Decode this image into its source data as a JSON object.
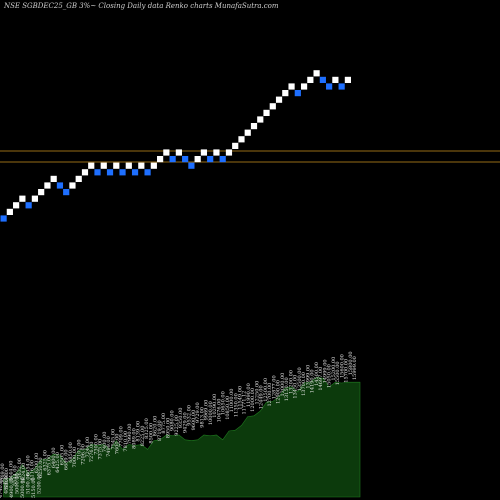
{
  "chart_data": {
    "type": "renko",
    "title": "NSE SGBDEC25_GB 3%~  Closing Daily data Renko  charts MunafaSutra.com",
    "colors": {
      "background": "#000000",
      "up_brick": "#ffffff",
      "down_brick": "#1e6fff",
      "reference_line": "#c8901e",
      "volume_fill": "#0c3a0c",
      "volume_line": "#1f7a1f"
    },
    "bricks": [
      {
        "dir": "down",
        "level": 0
      },
      {
        "dir": "up",
        "level": 1
      },
      {
        "dir": "up",
        "level": 2
      },
      {
        "dir": "up",
        "level": 3
      },
      {
        "dir": "down",
        "level": 2
      },
      {
        "dir": "up",
        "level": 3
      },
      {
        "dir": "up",
        "level": 4
      },
      {
        "dir": "up",
        "level": 5
      },
      {
        "dir": "up",
        "level": 6
      },
      {
        "dir": "down",
        "level": 5
      },
      {
        "dir": "down",
        "level": 4
      },
      {
        "dir": "up",
        "level": 5
      },
      {
        "dir": "up",
        "level": 6
      },
      {
        "dir": "up",
        "level": 7
      },
      {
        "dir": "up",
        "level": 8
      },
      {
        "dir": "down",
        "level": 7
      },
      {
        "dir": "up",
        "level": 8
      },
      {
        "dir": "down",
        "level": 7
      },
      {
        "dir": "up",
        "level": 8
      },
      {
        "dir": "down",
        "level": 7
      },
      {
        "dir": "up",
        "level": 8
      },
      {
        "dir": "down",
        "level": 7
      },
      {
        "dir": "up",
        "level": 8
      },
      {
        "dir": "down",
        "level": 7
      },
      {
        "dir": "up",
        "level": 8
      },
      {
        "dir": "up",
        "level": 9
      },
      {
        "dir": "up",
        "level": 10
      },
      {
        "dir": "down",
        "level": 9
      },
      {
        "dir": "up",
        "level": 10
      },
      {
        "dir": "down",
        "level": 9
      },
      {
        "dir": "down",
        "level": 8
      },
      {
        "dir": "up",
        "level": 9
      },
      {
        "dir": "up",
        "level": 10
      },
      {
        "dir": "down",
        "level": 9
      },
      {
        "dir": "up",
        "level": 10
      },
      {
        "dir": "down",
        "level": 9
      },
      {
        "dir": "up",
        "level": 10
      },
      {
        "dir": "up",
        "level": 11
      },
      {
        "dir": "up",
        "level": 12
      },
      {
        "dir": "up",
        "level": 13
      },
      {
        "dir": "up",
        "level": 14
      },
      {
        "dir": "up",
        "level": 15
      },
      {
        "dir": "up",
        "level": 16
      },
      {
        "dir": "up",
        "level": 17
      },
      {
        "dir": "up",
        "level": 18
      },
      {
        "dir": "up",
        "level": 19
      },
      {
        "dir": "up",
        "level": 20
      },
      {
        "dir": "down",
        "level": 19
      },
      {
        "dir": "up",
        "level": 20
      },
      {
        "dir": "up",
        "level": 21
      },
      {
        "dir": "up",
        "level": 22
      },
      {
        "dir": "down",
        "level": 21
      },
      {
        "dir": "down",
        "level": 20
      },
      {
        "dir": "up",
        "level": 21
      },
      {
        "dir": "down",
        "level": 20
      },
      {
        "dir": "up",
        "level": 21
      }
    ],
    "volume_labels": [
      "5069.00",
      "5369.00",
      "5444.00",
      "5544.00",
      "5632.00",
      "5824.00",
      "6054.00",
      "6116.00",
      "6200.00",
      "6250.00",
      "6325.00",
      "6375.00",
      "6400.00",
      "6425.00",
      "6505.00",
      "6689.00",
      "6850.00",
      "7000.00",
      "7102.00",
      "7206.00",
      "7244.00",
      "7276.00",
      "7300.00",
      "7375.00",
      "7400.00",
      "7499.00",
      "7545.00",
      "7600.00",
      "7709.00",
      "7810.00",
      "7990.00",
      "8089.00",
      "8139.00",
      "8225.00",
      "8325.00",
      "8500.00",
      "8620.00",
      "8719.00",
      "8775.00",
      "8950.00",
      "9080.00",
      "9225.00",
      "9350.00",
      "9429.00",
      "9532.00",
      "9600.00",
      "9729.00",
      "9813.00",
      "9969.00",
      "10000.00",
      "10290.00",
      "10476.00",
      "10650.00",
      "10850.00",
      "11000.00",
      "11350.00",
      "11549.00",
      "11771.12",
      "11990.00",
      "12000.00",
      "12250.00",
      "12449.00",
      "12500.00",
      "12700.00",
      "12877.00",
      "12900.00",
      "13000.00",
      "13150.00",
      "13200.00",
      "13450.00",
      "13500.00",
      "13700.00",
      "13999.00",
      "14190.00",
      "14500.00",
      "14697.00",
      "14999.00",
      "15050.00",
      "15200.00",
      "15500.00",
      "15600.00",
      "15700.00",
      "15800.00",
      "15999.00"
    ],
    "annotations": [
      "4740.00",
      "4800.00",
      "4900.00",
      "5000.00",
      "5000.00",
      "5100.00",
      "5150.00",
      "5200.00"
    ]
  }
}
